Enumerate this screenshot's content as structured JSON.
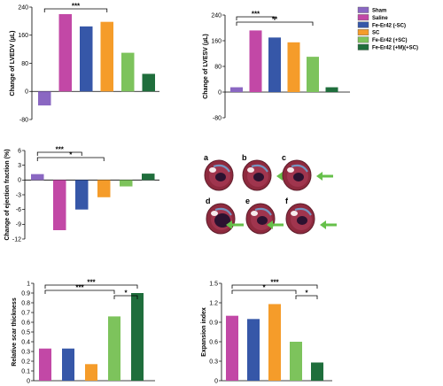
{
  "colors": {
    "Sham": "#8a67c2",
    "Saline": "#c248a6",
    "Fe-Er42 (-SC)": "#3657a8",
    "SC": "#f59c2a",
    "Fe-Er42 (+SC)": "#7dc35c",
    "Fe-Er42 (+M)(+SC)": "#1f6e3c",
    "arrow": "#66c04a"
  },
  "legend": [
    "Sham",
    "Saline",
    "Fe-Er42 (-SC)",
    "SC",
    "Fe-Er42 (+SC)",
    "Fe-Er42 (+M)(+SC)"
  ],
  "chart_data": [
    {
      "id": "lvedv",
      "type": "bar",
      "ylabel": "Change of LVEDV (µL)",
      "ylim": [
        -80,
        240
      ],
      "yticks": [
        -80,
        0,
        80,
        160,
        240
      ],
      "categories": [
        "Sham",
        "Saline",
        "Fe-Er42 (-SC)",
        "SC",
        "Fe-Er42 (+SC)",
        "Fe-Er42 (+M)(+SC)"
      ],
      "values": [
        -40,
        220,
        185,
        198,
        110,
        50
      ],
      "significance": [
        {
          "from": 0,
          "to": 3,
          "label": "***"
        }
      ]
    },
    {
      "id": "lvesv",
      "type": "bar",
      "ylabel": "Change of LVESV (µL)",
      "ylim": [
        -80,
        240
      ],
      "yticks": [
        -80,
        0,
        80,
        160,
        240
      ],
      "categories": [
        "Sham",
        "Saline",
        "Fe-Er42 (-SC)",
        "SC",
        "Fe-Er42 (+SC)",
        "Fe-Er42 (+M)(+SC)"
      ],
      "values": [
        15,
        192,
        170,
        155,
        110,
        15
      ],
      "significance": [
        {
          "from": 0,
          "to": 2,
          "label": "***"
        },
        {
          "from": 0,
          "to": 4,
          "label": "**"
        }
      ]
    },
    {
      "id": "ef",
      "type": "bar",
      "ylabel": "Change of ejection fraction (%)",
      "ylim": [
        -12,
        6
      ],
      "yticks": [
        -12,
        -9,
        -6,
        -3,
        0,
        3,
        6
      ],
      "categories": [
        "Sham",
        "Saline",
        "Fe-Er42 (-SC)",
        "SC",
        "Fe-Er42 (+SC)",
        "Fe-Er42 (+M)(+SC)"
      ],
      "values": [
        1.2,
        -10.2,
        -6.0,
        -3.5,
        -1.3,
        1.3
      ],
      "significance": [
        {
          "from": 0,
          "to": 2,
          "label": "***"
        },
        {
          "from": 0,
          "to": 3,
          "label": "*"
        }
      ]
    },
    {
      "id": "rst",
      "type": "bar",
      "ylabel": "Relative scar thickness",
      "ylim": [
        0,
        1.0
      ],
      "yticks": [
        0,
        0.1,
        0.2,
        0.3,
        0.4,
        0.5,
        0.6,
        0.7,
        0.8,
        0.9,
        1.0
      ],
      "categories": [
        "Saline",
        "Fe-Er42 (-SC)",
        "SC",
        "Fe-Er42 (+SC)",
        "Fe-Er42 (+M)(+SC)"
      ],
      "values": [
        0.33,
        0.33,
        0.17,
        0.66,
        0.9
      ],
      "significance": [
        {
          "from": 0,
          "to": 4,
          "label": "***"
        },
        {
          "from": 0,
          "to": 3,
          "label": "***"
        },
        {
          "from": 3,
          "to": 4,
          "label": "*"
        }
      ]
    },
    {
      "id": "ei",
      "type": "bar",
      "ylabel": "Expansion index",
      "ylim": [
        0,
        1.5
      ],
      "yticks": [
        0,
        0.3,
        0.6,
        0.9,
        1.2,
        1.5
      ],
      "categories": [
        "Saline",
        "Fe-Er42 (-SC)",
        "SC",
        "Fe-Er42 (+SC)",
        "Fe-Er42 (+M)(+SC)"
      ],
      "values": [
        1.0,
        0.95,
        1.18,
        0.6,
        0.28
      ],
      "significance": [
        {
          "from": 0,
          "to": 4,
          "label": "***"
        },
        {
          "from": 0,
          "to": 3,
          "label": "*"
        },
        {
          "from": 3,
          "to": 4,
          "label": "*"
        }
      ]
    }
  ],
  "heart_panels": [
    "a",
    "b",
    "c",
    "d",
    "e",
    "f"
  ]
}
